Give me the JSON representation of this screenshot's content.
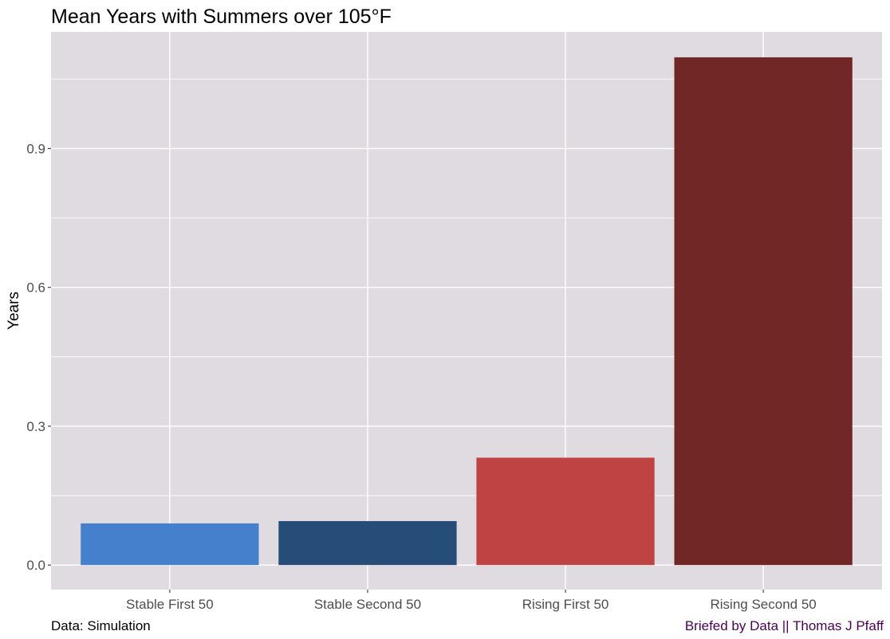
{
  "chart_data": {
    "type": "bar",
    "title": "Mean Years with Summers over 105°F",
    "xlabel": "",
    "ylabel": "Years",
    "categories": [
      "Stable First 50",
      "Stable Second 50",
      "Rising First 50",
      "Rising Second 50"
    ],
    "values": [
      0.09,
      0.095,
      0.232,
      1.097
    ],
    "colors": [
      "#4480CC",
      "#264D78",
      "#BF4343",
      "#722727"
    ],
    "ylim": [
      -0.053,
      1.152
    ],
    "yticks": [
      0.0,
      0.3,
      0.6,
      0.9
    ],
    "ytick_labels": [
      "0.0",
      "0.3",
      "0.6",
      "0.9"
    ],
    "grid": true,
    "panel_background": "#E0DBE0",
    "grid_color": "#FFFFFF"
  },
  "caption": {
    "left": "Data: Simulation",
    "right": "Briefed by Data || Thomas J Pfaff",
    "right_color": "#4B0055"
  }
}
